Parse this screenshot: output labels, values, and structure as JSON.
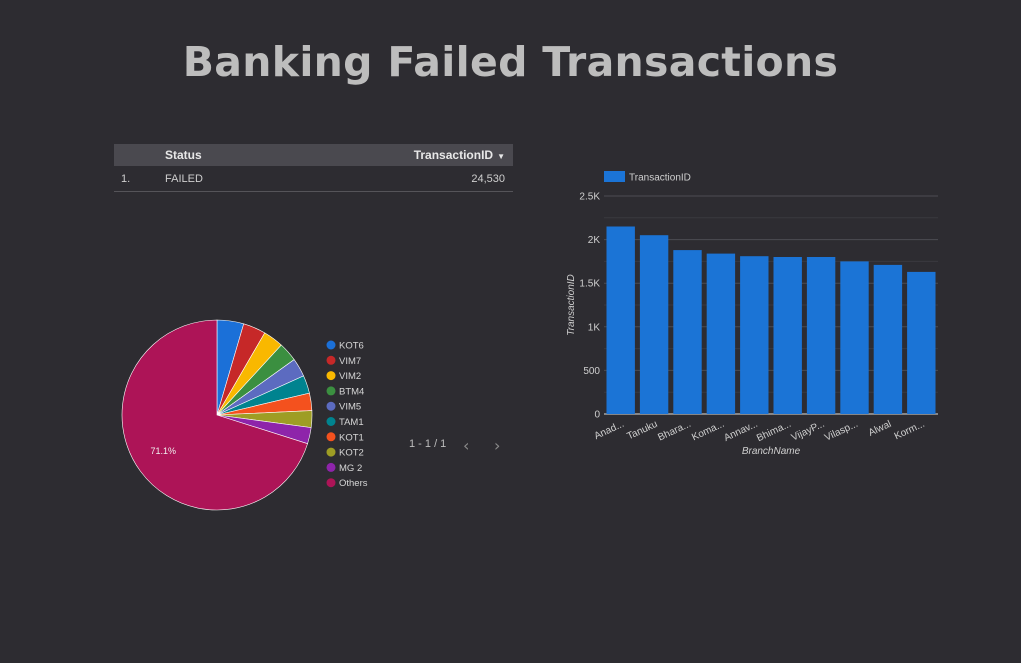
{
  "title": "Banking Failed Transactions",
  "table": {
    "columns": [
      "Status",
      "TransactionID"
    ],
    "rows": [
      {
        "index": "1.",
        "status": "FAILED",
        "value": "24,530"
      }
    ],
    "sort_icon": "caret-down-icon"
  },
  "pager": {
    "label": "1 - 1 / 1",
    "prev_icon": "chevron-left-icon",
    "next_icon": "chevron-right-icon"
  },
  "chart_data": [
    {
      "type": "pie",
      "labels": [
        "KOT6",
        "VIM7",
        "VIM2",
        "BTM4",
        "VIM5",
        "TAM1",
        "KOT1",
        "KOT2",
        "MG 2",
        "Others"
      ],
      "values": [
        4.6,
        3.9,
        3.5,
        3.3,
        3.2,
        3.1,
        3.0,
        2.9,
        2.8,
        71.1
      ],
      "colors": [
        "#1b70d8",
        "#c62828",
        "#f9b800",
        "#3b8f40",
        "#5c6bc0",
        "#00838f",
        "#f4511e",
        "#9e9d24",
        "#8e24aa",
        "#ad1457"
      ],
      "data_labels": [
        {
          "index": 9,
          "text": "71.1%"
        }
      ],
      "legend_position": "right"
    },
    {
      "type": "bar",
      "categories": [
        "Anad...",
        "Tanuku",
        "Bhara...",
        "Koma...",
        "Annav...",
        "Bhima...",
        "VijayP...",
        "Vilasp...",
        "Alwal",
        "Korm..."
      ],
      "series": [
        {
          "name": "TransactionID",
          "values": [
            2150,
            2050,
            1880,
            1840,
            1810,
            1800,
            1800,
            1750,
            1710,
            1630
          ],
          "color": "#1b74d6"
        }
      ],
      "xlabel": "BranchName",
      "ylabel": "TransactionID",
      "ylim": [
        0,
        2500
      ],
      "yticks": [
        0,
        500,
        1000,
        1500,
        2000,
        2500
      ],
      "ytick_labels": [
        "0",
        "500",
        "1K",
        "1.5K",
        "2K",
        "2.5K"
      ],
      "grid": true,
      "legend_position": "top-left"
    }
  ]
}
